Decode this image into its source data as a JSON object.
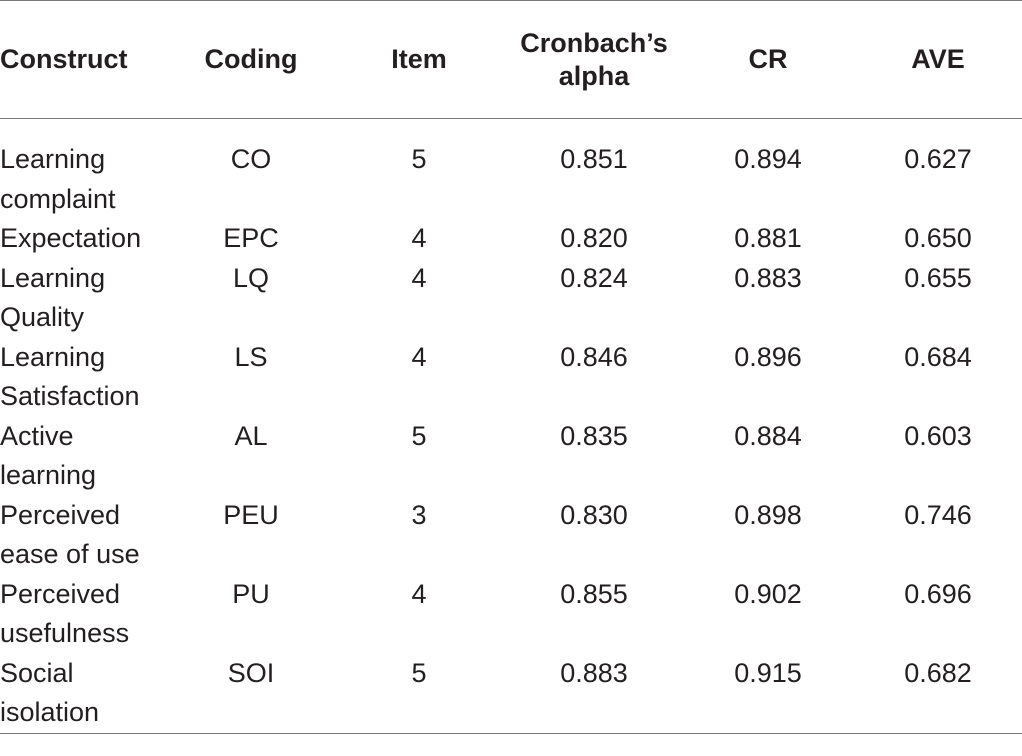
{
  "table": {
    "headers": {
      "construct": "Construct",
      "coding": "Coding",
      "item": "Item",
      "alpha_line1": "Cronbach’s",
      "alpha_line2": "alpha",
      "cr": "CR",
      "ave": "AVE"
    },
    "rows": [
      {
        "construct_line1": "Learning",
        "construct_line2": "complaint",
        "coding": "CO",
        "item": "5",
        "alpha": "0.851",
        "cr": "0.894",
        "ave": "0.627"
      },
      {
        "construct_line1": "Expectation",
        "construct_line2": "",
        "coding": "EPC",
        "item": "4",
        "alpha": "0.820",
        "cr": "0.881",
        "ave": "0.650"
      },
      {
        "construct_line1": "Learning",
        "construct_line2": "Quality",
        "coding": "LQ",
        "item": "4",
        "alpha": "0.824",
        "cr": "0.883",
        "ave": "0.655"
      },
      {
        "construct_line1": "Learning",
        "construct_line2": "Satisfaction",
        "coding": "LS",
        "item": "4",
        "alpha": "0.846",
        "cr": "0.896",
        "ave": "0.684"
      },
      {
        "construct_line1": "Active",
        "construct_line2": "learning",
        "coding": "AL",
        "item": "5",
        "alpha": "0.835",
        "cr": "0.884",
        "ave": "0.603"
      },
      {
        "construct_line1": "Perceived",
        "construct_line2": "ease of use",
        "coding": "PEU",
        "item": "3",
        "alpha": "0.830",
        "cr": "0.898",
        "ave": "0.746"
      },
      {
        "construct_line1": "Perceived",
        "construct_line2": "usefulness",
        "coding": "PU",
        "item": "4",
        "alpha": "0.855",
        "cr": "0.902",
        "ave": "0.696"
      },
      {
        "construct_line1": "Social",
        "construct_line2": "isolation",
        "coding": "SOI",
        "item": "5",
        "alpha": "0.883",
        "cr": "0.915",
        "ave": "0.682"
      }
    ]
  }
}
